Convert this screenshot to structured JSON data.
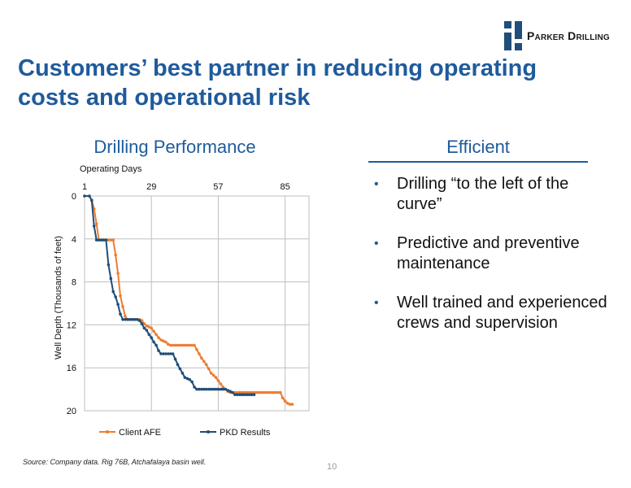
{
  "logo": {
    "text": "Parker Drilling"
  },
  "title": "Customers’ best partner in reducing operating costs and operational risk",
  "chart_heading": "Drilling Performance",
  "panel": {
    "heading": "Efficient",
    "bullets": [
      "Drilling “to the left of the curve”",
      "Predictive and preventive maintenance",
      "Well trained and experienced crews and supervision"
    ]
  },
  "source": "Source: Company data. Rig 76B, Atchafalaya basin well.",
  "page_number": "10",
  "colors": {
    "title": "#1f5b9c",
    "client": "#ed7d31",
    "pkd": "#1f4e79",
    "grid": "#bfbfbf"
  },
  "chart_data": {
    "type": "line",
    "title": "",
    "xlabel": "Operating Days",
    "ylabel": "Well Depth (Thousands of feet)",
    "x_position": "top",
    "xlim": [
      1,
      95
    ],
    "ylim": [
      0,
      20
    ],
    "y_inverted": true,
    "x_ticks": [
      1,
      29,
      57,
      85
    ],
    "y_ticks": [
      0,
      4,
      8,
      12,
      16,
      20
    ],
    "grid": true,
    "legend": "bottom",
    "series": [
      {
        "name": "Client AFE",
        "color": "#ed7d31",
        "x": [
          1,
          3,
          4,
          5,
          6,
          7,
          8,
          9,
          10,
          11,
          12,
          13,
          14,
          15,
          16,
          17,
          18,
          19,
          20,
          21,
          22,
          23,
          24,
          25,
          26,
          27,
          28,
          29,
          30,
          31,
          32,
          33,
          34,
          35,
          36,
          37,
          38,
          39,
          40,
          41,
          42,
          43,
          44,
          45,
          46,
          47,
          48,
          49,
          50,
          51,
          52,
          53,
          54,
          55,
          56,
          57,
          58,
          59,
          60,
          61,
          62,
          63,
          64,
          65,
          66,
          67,
          68,
          69,
          70,
          71,
          72,
          73,
          74,
          75,
          76,
          77,
          78,
          79,
          80,
          81,
          82,
          83,
          84,
          85,
          86,
          87,
          88
        ],
        "y": [
          0,
          0,
          0.4,
          1.2,
          2.6,
          4.1,
          4.1,
          4.1,
          4.1,
          4.1,
          4.1,
          4.1,
          5.5,
          7.2,
          9.3,
          10.3,
          11.2,
          11.5,
          11.5,
          11.5,
          11.5,
          11.5,
          11.5,
          11.6,
          11.9,
          12.1,
          12.2,
          12.3,
          12.6,
          12.9,
          13.2,
          13.4,
          13.5,
          13.6,
          13.8,
          13.9,
          13.9,
          13.9,
          13.9,
          13.9,
          13.9,
          13.9,
          13.9,
          13.9,
          13.9,
          13.9,
          14.3,
          14.7,
          15.1,
          15.4,
          15.7,
          16.1,
          16.5,
          16.7,
          16.9,
          17.2,
          17.5,
          17.8,
          18.0,
          18.2,
          18.3,
          18.3,
          18.3,
          18.3,
          18.3,
          18.3,
          18.3,
          18.3,
          18.3,
          18.3,
          18.3,
          18.3,
          18.3,
          18.3,
          18.3,
          18.3,
          18.3,
          18.3,
          18.3,
          18.3,
          18.3,
          18.3,
          18.8,
          19.1,
          19.3,
          19.4,
          19.4
        ]
      },
      {
        "name": "PKD Results",
        "color": "#1f4e79",
        "x": [
          1,
          3,
          4,
          5,
          6,
          7,
          8,
          9,
          10,
          11,
          12,
          13,
          14,
          15,
          16,
          17,
          18,
          19,
          20,
          21,
          22,
          23,
          24,
          25,
          26,
          27,
          28,
          29,
          30,
          31,
          32,
          33,
          34,
          35,
          36,
          37,
          38,
          39,
          40,
          41,
          42,
          43,
          44,
          45,
          46,
          47,
          48,
          49,
          50,
          51,
          52,
          53,
          54,
          55,
          56,
          57,
          58,
          59,
          60,
          61,
          62,
          63,
          64,
          65,
          66,
          67,
          68,
          69,
          70,
          71,
          72
        ],
        "y": [
          0,
          0,
          0.4,
          2.8,
          4.1,
          4.1,
          4.1,
          4.1,
          4.1,
          6.4,
          7.7,
          8.9,
          9.4,
          10.1,
          11.0,
          11.5,
          11.5,
          11.5,
          11.5,
          11.5,
          11.5,
          11.5,
          11.6,
          11.9,
          12.3,
          12.5,
          12.9,
          13.2,
          13.6,
          13.9,
          14.4,
          14.7,
          14.7,
          14.7,
          14.7,
          14.7,
          14.7,
          15.2,
          15.7,
          16.1,
          16.5,
          16.9,
          17.0,
          17.1,
          17.3,
          17.8,
          18.0,
          18.0,
          18.0,
          18.0,
          18.0,
          18.0,
          18.0,
          18.0,
          18.0,
          18.0,
          18.0,
          18.0,
          18.0,
          18.1,
          18.2,
          18.3,
          18.5,
          18.5,
          18.5,
          18.5,
          18.5,
          18.5,
          18.5,
          18.5,
          18.5
        ]
      }
    ]
  }
}
